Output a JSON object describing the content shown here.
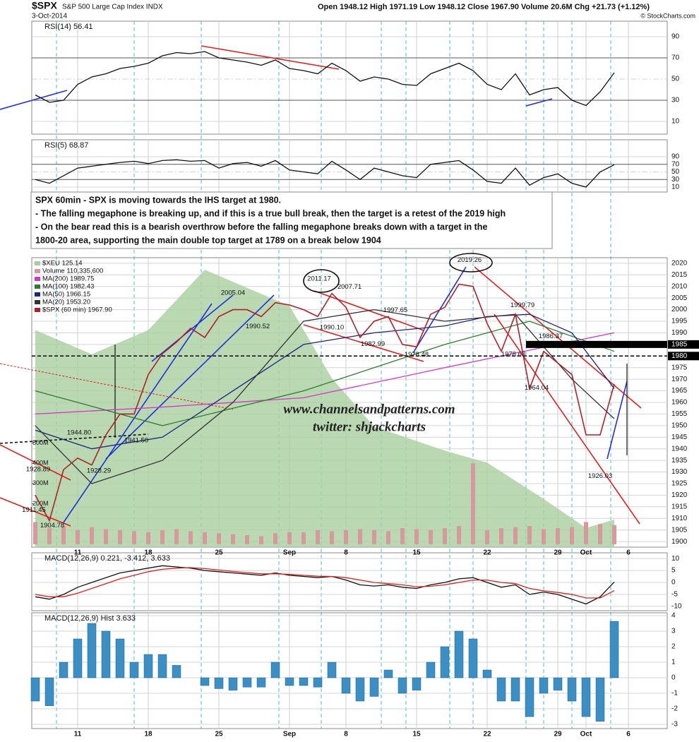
{
  "header": {
    "symbol": "$SPX",
    "name": "S&P 500 Large Cap Index INDX",
    "date": "3-Oct-2014",
    "quote": "Open 1948.12 High 1971.19 Low 1948.12 Close 1967.90 Volume 20.6M Chg +21.73 (+1.12%)",
    "credit": "© StockCharts.com"
  },
  "annotation": [
    "SPX 60min - SPX is moving towards the IHS target at 1980.",
    "- The falling megaphone is breaking up, and if this is a true bull break, then the target is a retest of the 2019 high",
    "- On the bear read this is a bearish overthrow before the falling megaphone breaks down with a target in the",
    "1800-20 area, supporting the main double top target at 1789 on a break below 1904"
  ],
  "watermark": [
    "www.channelsandpatterns.com",
    "twitter: shjackcharts"
  ],
  "chart_data": [
    {
      "type": "line",
      "title": "RSI(14) 56.41",
      "x": [
        1,
        2,
        3,
        4,
        5,
        6,
        7,
        8,
        9,
        10,
        11,
        12,
        13,
        14,
        15,
        16,
        17,
        18,
        19,
        20,
        21,
        22,
        23,
        24,
        25,
        26,
        27,
        28,
        29,
        30,
        31,
        32,
        33,
        34,
        35,
        36,
        37,
        38,
        39,
        40,
        41,
        42
      ],
      "series": [
        {
          "color": "#111111",
          "values": [
            35,
            28,
            30,
            45,
            52,
            55,
            60,
            62,
            65,
            72,
            75,
            74,
            76,
            70,
            68,
            66,
            63,
            68,
            60,
            58,
            55,
            65,
            58,
            48,
            52,
            50,
            45,
            44,
            55,
            60,
            65,
            58,
            45,
            40,
            55,
            35,
            40,
            42,
            30,
            25,
            38,
            56
          ]
        }
      ],
      "xlim": [
        0.75,
        45.75
      ],
      "ylim": [
        -2,
        104.7
      ],
      "yticks": [
        10,
        30,
        50,
        70,
        90
      ]
    },
    {
      "type": "line",
      "title": "RSI(5) 68.87",
      "x": [
        1,
        2,
        3,
        4,
        5,
        6,
        7,
        8,
        9,
        10,
        11,
        12,
        13,
        14,
        15,
        16,
        17,
        18,
        19,
        20,
        21,
        22,
        23,
        24,
        25,
        26,
        27,
        28,
        29,
        30,
        31,
        32,
        33,
        34,
        35,
        36,
        37,
        38,
        39,
        40,
        41,
        42
      ],
      "series": [
        {
          "color": "#111111",
          "values": [
            30,
            20,
            40,
            60,
            65,
            70,
            75,
            78,
            72,
            80,
            82,
            78,
            80,
            60,
            72,
            75,
            65,
            80,
            55,
            50,
            45,
            78,
            55,
            30,
            60,
            50,
            40,
            35,
            70,
            75,
            80,
            55,
            25,
            20,
            60,
            15,
            35,
            45,
            20,
            10,
            50,
            69
          ]
        }
      ],
      "xlim": [
        0.75,
        45.75
      ],
      "ylim": [
        -3,
        134.6
      ],
      "yticks": [
        10,
        30,
        50,
        70,
        90
      ]
    },
    {
      "type": "line",
      "x": [
        1,
        2,
        3,
        4,
        5,
        6,
        7,
        8,
        9,
        10,
        11,
        12,
        13,
        14,
        15,
        16,
        17,
        18,
        19,
        20,
        21,
        22,
        23,
        24,
        25,
        26,
        27,
        28,
        29,
        30,
        31,
        32,
        33,
        34,
        35,
        36,
        37,
        38,
        39,
        40,
        41,
        42
      ],
      "series": [
        {
          "name": "$XEU 125.14",
          "type": "area",
          "axis": "y2",
          "color": "#a9cf9f",
          "x": [
            1,
            5,
            9,
            13,
            19,
            22,
            25,
            30,
            33,
            37,
            40,
            42
          ],
          "values": [
            133,
            132,
            133,
            135.5,
            134,
            131,
            129,
            128,
            127.5,
            126,
            124.8,
            125.14
          ]
        },
        {
          "name": "Volume 110,335,600",
          "type": "bar",
          "axis": "v",
          "color": "#d9999c",
          "values": [
            110000000,
            80000000,
            90000000,
            70000000,
            85000000,
            75000000,
            70000000,
            65000000,
            60000000,
            70000000,
            75000000,
            65000000,
            60000000,
            55000000,
            50000000,
            45000000,
            40000000,
            55000000,
            60000000,
            60000000,
            70000000,
            65000000,
            70000000,
            75000000,
            70000000,
            65000000,
            80000000,
            75000000,
            70000000,
            80000000,
            90000000,
            400000000,
            70000000,
            80000000,
            85000000,
            90000000,
            75000000,
            80000000,
            85000000,
            110000000,
            100000000,
            95000000
          ]
        },
        {
          "name": "MA(200) 1989.75",
          "color": "#d633c8",
          "x": [
            1,
            10,
            20,
            30,
            42
          ],
          "values": [
            1955,
            1958,
            1962,
            1975,
            1990
          ]
        },
        {
          "name": "MA(100) 1982.43",
          "color": "#2e7d2e",
          "x": [
            1,
            10,
            20,
            30,
            36,
            42
          ],
          "values": [
            1965,
            1950,
            1965,
            1985,
            1995,
            1982
          ]
        },
        {
          "name": "MA(50) 1966.15",
          "color": "#1a237e",
          "x": [
            1,
            5,
            10,
            15,
            20,
            25,
            30,
            33,
            36,
            39,
            42
          ],
          "values": [
            1948,
            1940,
            1945,
            1965,
            1985,
            1990,
            1993,
            1997,
            1998,
            1990,
            1966
          ]
        },
        {
          "name": "MA(20) 1953.20",
          "color": "#333333",
          "x": [
            1,
            5,
            10,
            15,
            20,
            25,
            30,
            35,
            39,
            42
          ],
          "values": [
            1950,
            1925,
            1935,
            1960,
            1995,
            2000,
            1995,
            1998,
            1970,
            1953
          ]
        },
        {
          "name": "$SPX (60 min) 1967.90",
          "color": "#b0202a",
          "values": [
            1920,
            1909,
            1931,
            1936,
            1933,
            1946,
            1955,
            1955,
            1972,
            1981,
            1986,
            1992,
            1988,
            1997,
            2000,
            2000,
            1997,
            2003,
            2002,
            2000,
            1997,
            2007,
            2001,
            1988,
            1995,
            1997,
            1985,
            1984,
            1998,
            2001,
            2011,
            2010,
            1994,
            1982,
            1998,
            1966,
            1982,
            1977,
            1972,
            1946,
            1946,
            1967.9
          ]
        }
      ],
      "price_labels": {
        "x": [
          15,
          16.75,
          21.1,
          23.25,
          22,
          26.5,
          24.9,
          28,
          31.75,
          35.5,
          37.5,
          34.85,
          36.5,
          41,
          4.1,
          8.15,
          5.5,
          1.2,
          2.2,
          0.9
        ],
        "values": [
          2005.04,
          1990.52,
          2011.17,
          2007.71,
          1990.1,
          1997.65,
          1982.99,
          1978.48,
          2019.26,
          1999.79,
          1986.37,
          1978.63,
          1964.04,
          1926.03,
          1944.8,
          1941.5,
          1928.29,
          1928.89,
          1904.78,
          1911.45
        ],
        "value_labels": [
          "2005.04",
          "1990.52",
          "2011.17",
          "2007.71",
          "1990.10",
          "1997.65",
          "1982.99",
          "1978.48",
          "2019.26",
          "1999.79",
          "1986.37",
          "1978.63",
          "1964.04",
          "1926.03",
          "1944.80",
          "1941.50",
          "1928.29",
          "1928.89",
          "1904.78",
          "1911.45"
        ]
      },
      "levels": [
        1985,
        1980
      ],
      "xlim": [
        0.75,
        45.75
      ],
      "ylim": [
        1897.6,
        2022.4
      ],
      "y2lim": [
        124,
        136
      ],
      "vlim": [
        -14000000,
        1414000000
      ],
      "vticks": [
        {
          "value": 500000000,
          "label": "500M"
        },
        {
          "value": 400000000,
          "label": "400M"
        },
        {
          "value": 300000000,
          "label": "300M"
        },
        {
          "value": 200000000,
          "label": "200M"
        }
      ],
      "yticks": [
        1900,
        1905,
        1910,
        1915,
        1920,
        1925,
        1930,
        1935,
        1940,
        1945,
        1950,
        1955,
        1960,
        1965,
        1970,
        1975,
        1980,
        1985,
        1990,
        1995,
        2000,
        2005,
        2010,
        2015,
        2020
      ],
      "xticks": [
        {
          "value": 4,
          "label": "11"
        },
        {
          "value": 9,
          "label": "18"
        },
        {
          "value": 14,
          "label": "25"
        },
        {
          "value": 19,
          "label": "Sep"
        },
        {
          "value": 23,
          "label": "8"
        },
        {
          "value": 28,
          "label": "15"
        },
        {
          "value": 33,
          "label": "22"
        },
        {
          "value": 38,
          "label": "29"
        },
        {
          "value": 40,
          "label": "Oct"
        },
        {
          "value": 43,
          "label": "6"
        }
      ]
    },
    {
      "type": "line",
      "title": "MACD(12,26,9) 0.221, -3.412, 3.633",
      "x": [
        1,
        2,
        3,
        4,
        5,
        6,
        7,
        8,
        9,
        10,
        11,
        12,
        13,
        14,
        15,
        16,
        17,
        18,
        19,
        20,
        21,
        22,
        23,
        24,
        25,
        26,
        27,
        28,
        29,
        30,
        31,
        32,
        33,
        34,
        35,
        36,
        37,
        38,
        39,
        40,
        41,
        42
      ],
      "series": [
        {
          "color": "#111111",
          "values": [
            -6,
            -7,
            -5,
            -2,
            0,
            2,
            4,
            5,
            6,
            7,
            6.5,
            6,
            5,
            4.5,
            4,
            3.5,
            3,
            4,
            3,
            2.5,
            2,
            2.5,
            1,
            -1,
            -1.5,
            -1,
            -2,
            -2.5,
            -1,
            0,
            1.5,
            2,
            0,
            -2,
            -1,
            -5,
            -4,
            -5,
            -7,
            -9,
            -6,
            0.221
          ]
        },
        {
          "color": "#e02020",
          "values": [
            -5,
            -6,
            -6,
            -4.5,
            -2.5,
            -0.5,
            1.5,
            3,
            4.5,
            5.5,
            6,
            6.2,
            5.8,
            5.2,
            4.6,
            4.1,
            3.6,
            3.6,
            3.4,
            3,
            2.6,
            2.5,
            2,
            1,
            0,
            -0.5,
            -1,
            -1.8,
            -1.6,
            -1,
            0,
            1,
            1,
            0,
            -0.5,
            -2.5,
            -3.5,
            -4.2,
            -5,
            -6.5,
            -6.5,
            -3.412
          ]
        }
      ],
      "xlim": [
        0.75,
        45.75
      ],
      "ylim": [
        -11.8,
        12.4
      ],
      "yticks": [
        -10,
        -5,
        0,
        5,
        10
      ]
    },
    {
      "type": "bar",
      "title": "MACD(12,26,9) Hist 3.633",
      "x": [
        1,
        2,
        3,
        4,
        5,
        6,
        7,
        8,
        9,
        10,
        11,
        12,
        13,
        14,
        15,
        16,
        17,
        18,
        19,
        20,
        21,
        22,
        23,
        24,
        25,
        26,
        27,
        28,
        29,
        30,
        31,
        32,
        33,
        34,
        35,
        36,
        37,
        38,
        39,
        40,
        41,
        42
      ],
      "series": [
        {
          "color": "#3b8fc4",
          "values": [
            -1.5,
            -1.8,
            1,
            2.5,
            3.5,
            3,
            2.5,
            1,
            1.5,
            1.5,
            0.8,
            0,
            -0.5,
            -0.7,
            -0.8,
            -0.6,
            -0.6,
            1,
            -0.5,
            -0.5,
            -0.6,
            1,
            -1,
            -1.5,
            -1.2,
            0.5,
            -1,
            -0.8,
            1,
            2,
            3,
            2.5,
            0.5,
            -1.5,
            -1.5,
            -2.5,
            -1,
            -0.8,
            -1.5,
            -2.5,
            -2.8,
            3.633
          ]
        }
      ],
      "xlim": [
        0.75,
        45.75
      ],
      "ylim": [
        -3.27,
        4.18
      ],
      "yticks": [
        -3,
        -2,
        -1,
        0,
        1,
        2,
        3,
        4
      ],
      "xticks": [
        {
          "value": 4,
          "label": "11"
        },
        {
          "value": 9,
          "label": "18"
        },
        {
          "value": 14,
          "label": "25"
        },
        {
          "value": 19,
          "label": "Sep"
        },
        {
          "value": 23,
          "label": "8"
        },
        {
          "value": 28,
          "label": "15"
        },
        {
          "value": 33,
          "label": "22"
        },
        {
          "value": 38,
          "label": "29"
        },
        {
          "value": 40,
          "label": "Oct"
        },
        {
          "value": 43,
          "label": "6"
        }
      ]
    }
  ]
}
